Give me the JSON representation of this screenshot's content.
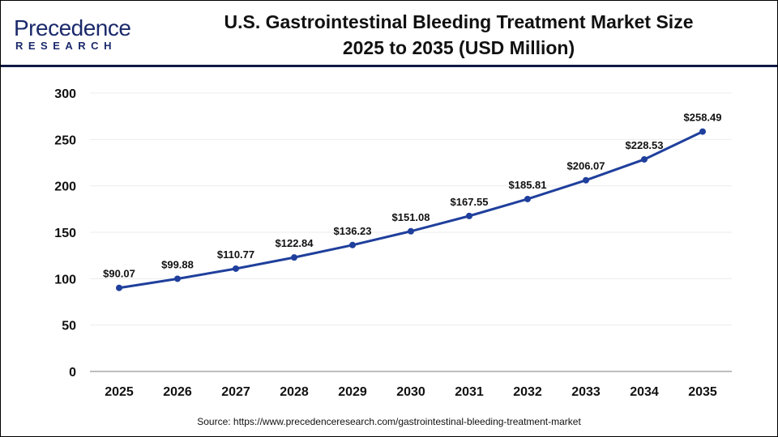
{
  "logo": {
    "line1": "Precedence",
    "line2": "RESEARCH"
  },
  "title_lines": [
    "U.S. Gastrointestinal Bleeding Treatment Market Size",
    "2025 to 2035 (USD Million)"
  ],
  "source": "Source: https://www.precedenceresearch.com/gastrointestinal-bleeding-treatment-market",
  "chart_data": {
    "type": "line",
    "title": "U.S. Gastrointestinal Bleeding Treatment Market Size 2025 to 2035 (USD Million)",
    "categories": [
      "2025",
      "2026",
      "2027",
      "2028",
      "2029",
      "2030",
      "2031",
      "2032",
      "2033",
      "2034",
      "2035"
    ],
    "values": [
      90.07,
      99.88,
      110.77,
      122.84,
      136.23,
      151.08,
      167.55,
      185.81,
      206.07,
      228.53,
      258.49
    ],
    "data_labels": [
      "$90.07",
      "$99.88",
      "$110.77",
      "$122.84",
      "$136.23",
      "$151.08",
      "$167.55",
      "$185.81",
      "$206.07",
      "$228.53",
      "$258.49"
    ],
    "yticks": [
      0,
      50,
      100,
      150,
      200,
      250,
      300
    ],
    "ylim": [
      0,
      300
    ],
    "grid": true,
    "line_color": "#1f3f9c",
    "xlabel": "",
    "ylabel": ""
  }
}
